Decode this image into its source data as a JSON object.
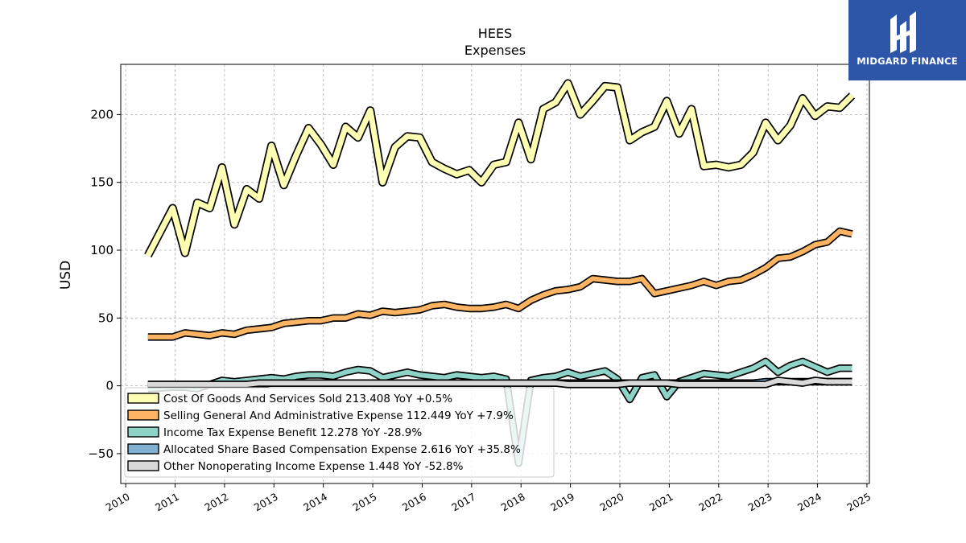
{
  "chart_data": {
    "type": "line",
    "title": "HEES",
    "subtitle": "Expenses",
    "xlabel": "",
    "ylabel": "USD",
    "ylim": [
      -72,
      237
    ],
    "xlim": [
      2009.9,
      2025.05
    ],
    "yticks": [
      -50,
      0,
      50,
      100,
      150,
      200
    ],
    "xticks": [
      "2010",
      "2011",
      "2012",
      "2013",
      "2014",
      "2015",
      "2016",
      "2017",
      "2018",
      "2019",
      "2020",
      "2021",
      "2022",
      "2023",
      "2024",
      "2025"
    ],
    "grid": true,
    "legend_position": "lower-left",
    "x": [
      2010.45,
      2010.95,
      2011.2,
      2011.45,
      2011.7,
      2011.95,
      2012.2,
      2012.45,
      2012.7,
      2012.95,
      2013.2,
      2013.45,
      2013.7,
      2013.95,
      2014.2,
      2014.45,
      2014.7,
      2014.95,
      2015.2,
      2015.45,
      2015.7,
      2015.95,
      2016.2,
      2016.45,
      2016.7,
      2016.95,
      2017.2,
      2017.45,
      2017.7,
      2017.95,
      2018.2,
      2018.45,
      2018.7,
      2018.95,
      2019.2,
      2019.45,
      2019.7,
      2019.95,
      2020.2,
      2020.45,
      2020.7,
      2020.95,
      2021.2,
      2021.45,
      2021.7,
      2021.95,
      2022.2,
      2022.45,
      2022.7,
      2022.95,
      2023.2,
      2023.45,
      2023.7,
      2023.95,
      2024.2,
      2024.45,
      2024.7
    ],
    "series": [
      {
        "name": "Cost Of Goods And Services Sold",
        "legend": "Cost Of Goods And Services Sold  213.408 YoY +0.5%",
        "color": "#ffffb3",
        "values": [
          96,
          131,
          98,
          135,
          131,
          161,
          119,
          145,
          138,
          177,
          148,
          170,
          190,
          178,
          163,
          191,
          183,
          203,
          150,
          176,
          184,
          183,
          165,
          160,
          156,
          159,
          150,
          163,
          165,
          194,
          167,
          204,
          209,
          223,
          200,
          210,
          221,
          220,
          181,
          187,
          191,
          210,
          186,
          204,
          162,
          163,
          161,
          163,
          172,
          194,
          181,
          192,
          212,
          199,
          206,
          205,
          214
        ]
      },
      {
        "name": "Selling General And Administrative Expense",
        "legend": "Selling General And Administrative Expense  112.449 YoY +7.9%",
        "color": "#fdb462",
        "values": [
          36,
          36,
          39,
          38,
          37,
          39,
          38,
          41,
          42,
          43,
          46,
          47,
          48,
          48,
          50,
          50,
          53,
          52,
          55,
          54,
          55,
          56,
          59,
          60,
          58,
          57,
          57,
          58,
          60,
          57,
          63,
          67,
          70,
          71,
          73,
          79,
          78,
          77,
          77,
          79,
          68,
          70,
          72,
          74,
          77,
          74,
          77,
          78,
          82,
          87,
          94,
          95,
          99,
          104,
          106,
          114,
          112
        ]
      },
      {
        "name": "Income Tax Expense Benefit",
        "legend": "Income Tax Expense Benefit  12.278 YoY -28.9%",
        "color": "#8dd3c7",
        "values": [
          -2,
          -1,
          -1,
          -2,
          1,
          4,
          3,
          4,
          5,
          6,
          5,
          7,
          8,
          8,
          7,
          10,
          12,
          11,
          6,
          8,
          10,
          8,
          7,
          6,
          8,
          7,
          6,
          7,
          5,
          -57,
          4,
          6,
          7,
          10,
          7,
          9,
          11,
          5,
          -10,
          6,
          8,
          -8,
          3,
          6,
          9,
          8,
          7,
          10,
          13,
          18,
          10,
          15,
          18,
          14,
          10,
          13,
          13
        ]
      },
      {
        "name": "Allocated Share Based Compensation Expense",
        "legend": "Allocated Share Based Compensation Expense  2.616 YoY +35.8%",
        "color": "#80b1d3",
        "values": [
          1,
          1,
          1,
          1,
          1,
          1,
          1,
          1,
          1,
          2,
          2,
          2,
          2,
          2,
          2,
          2,
          2,
          2,
          2,
          2,
          2,
          2,
          2,
          2,
          2,
          2,
          2,
          2,
          2,
          2,
          2,
          2,
          2,
          2,
          2,
          2,
          2,
          2,
          2,
          2,
          2,
          2,
          2,
          2,
          2,
          2,
          2,
          2,
          2,
          3,
          3,
          3,
          3,
          3,
          3,
          3,
          3
        ]
      },
      {
        "name": "Other Nonoperating Income Expense",
        "legend": "Other Nonoperating Income Expense  1.448 YoY -52.8%",
        "color": "#d9d9d9",
        "values": [
          1,
          1,
          1,
          1,
          1,
          1,
          1,
          1,
          2,
          2,
          2,
          2,
          2,
          2,
          2,
          2,
          2,
          2,
          2,
          2,
          2,
          2,
          2,
          2,
          2,
          2,
          2,
          2,
          2,
          2,
          2,
          2,
          2,
          1,
          1,
          1,
          1,
          1,
          2,
          2,
          2,
          2,
          1,
          1,
          1,
          1,
          1,
          1,
          1,
          1,
          4,
          3,
          2,
          4,
          3,
          3,
          3
        ]
      }
    ]
  },
  "brand": {
    "name": "MIDGARD FINANCE",
    "icon": "midgard-logo"
  }
}
